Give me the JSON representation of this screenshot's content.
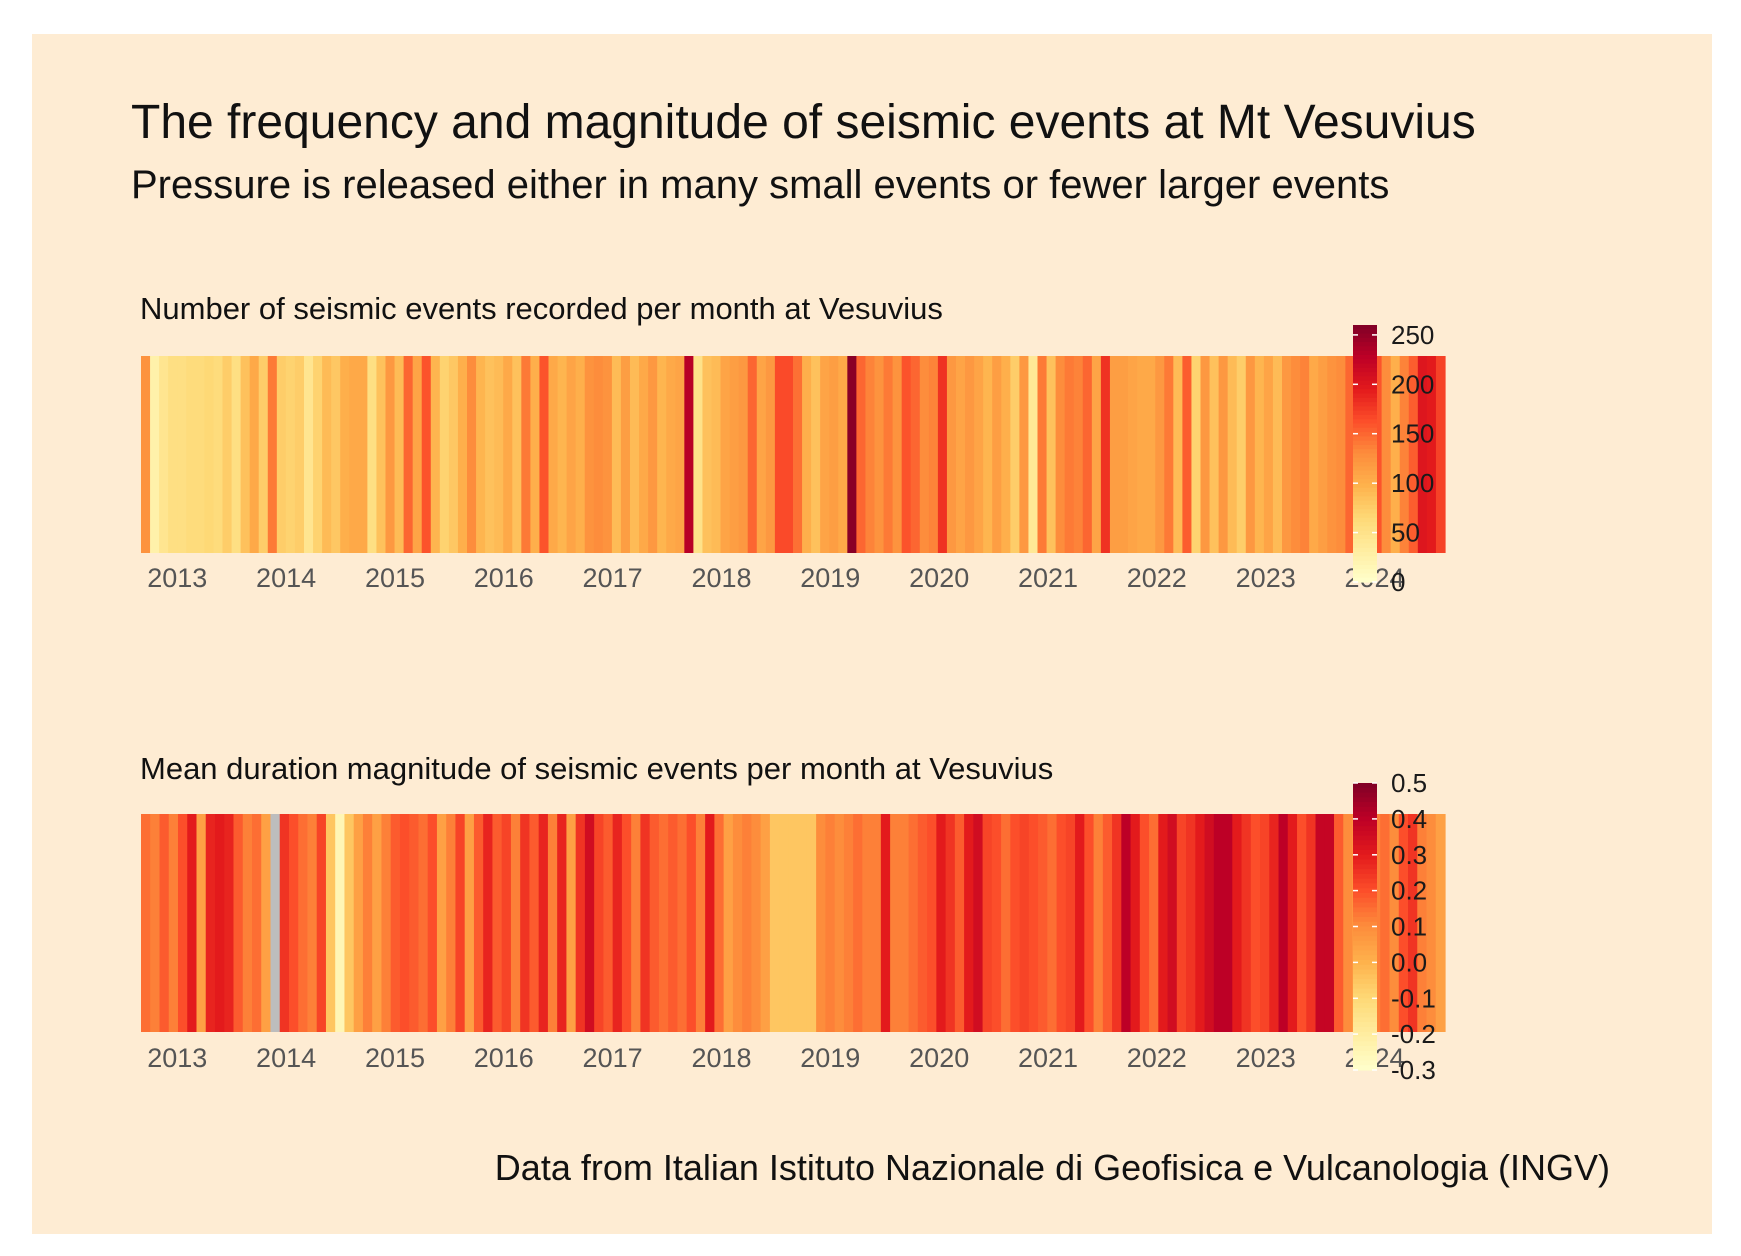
{
  "title": "The frequency and magnitude of seismic events at Mt Vesuvius",
  "subtitle": "Pressure is released either in many small events or fewer larger events",
  "caption": "Data from Italian Istituto Nazionale di Geofisica e Vulcanologia (INGV)",
  "colors": {
    "background": "#feecd3",
    "missing": "#bdbdbd",
    "scale": [
      "#ffffcc",
      "#ffeda0",
      "#fed976",
      "#feb24c",
      "#fd8d3c",
      "#fc4e2a",
      "#e31a1c",
      "#bd0026",
      "#800026"
    ]
  },
  "chart_data": [
    {
      "type": "heatmap",
      "title": "Number of seismic events recorded per month at Vesuvius",
      "x_start": "2013-01",
      "x_ticks": [
        "2013",
        "2014",
        "2015",
        "2016",
        "2017",
        "2018",
        "2019",
        "2020",
        "2021",
        "2022",
        "2023",
        "2024"
      ],
      "legend": {
        "min": 0,
        "max": 260,
        "ticks": [
          "0",
          "50",
          "100",
          "150",
          "200",
          "250"
        ],
        "tick_values": [
          0,
          50,
          100,
          150,
          200,
          250
        ]
      },
      "monthly_values": [
        125,
        25,
        45,
        55,
        55,
        60,
        60,
        65,
        60,
        75,
        55,
        85,
        105,
        75,
        140,
        75,
        70,
        75,
        45,
        70,
        90,
        80,
        100,
        105,
        105,
        55,
        85,
        120,
        90,
        150,
        110,
        160,
        95,
        70,
        80,
        100,
        130,
        95,
        85,
        90,
        105,
        85,
        140,
        100,
        160,
        105,
        95,
        110,
        100,
        125,
        130,
        125,
        90,
        115,
        90,
        105,
        120,
        95,
        105,
        110,
        230,
        50,
        85,
        90,
        110,
        115,
        120,
        150,
        110,
        120,
        165,
        165,
        145,
        100,
        85,
        110,
        115,
        105,
        255,
        150,
        135,
        125,
        140,
        125,
        160,
        150,
        130,
        135,
        180,
        120,
        110,
        120,
        110,
        95,
        115,
        100,
        75,
        120,
        40,
        140,
        85,
        130,
        140,
        135,
        150,
        110,
        180,
        115,
        115,
        110,
        105,
        105,
        120,
        140,
        90,
        155,
        70,
        120,
        85,
        120,
        90,
        75,
        120,
        95,
        110,
        90,
        120,
        130,
        135,
        105,
        115,
        125,
        130,
        150,
        125,
        115,
        160,
        130,
        100,
        135,
        155,
        200,
        195,
        170
      ]
    },
    {
      "type": "heatmap",
      "title": "Mean duration magnitude of seismic events per month at Vesuvius",
      "x_start": "2013-01",
      "x_ticks": [
        "2013",
        "2014",
        "2015",
        "2016",
        "2017",
        "2018",
        "2019",
        "2020",
        "2021",
        "2022",
        "2023",
        "2024"
      ],
      "legend": {
        "min": -0.3,
        "max": 0.5,
        "ticks": [
          "-0.3",
          "-0.2",
          "-0.1",
          "0.0",
          "0.1",
          "0.2",
          "0.3",
          "0.4",
          "0.5"
        ],
        "tick_values": [
          -0.3,
          -0.2,
          -0.1,
          0.0,
          0.1,
          0.2,
          0.3,
          0.4,
          0.5
        ]
      },
      "missing_months": [
        "2014-03"
      ],
      "monthly_values": [
        0.15,
        0.12,
        0.18,
        0.12,
        0.2,
        0.3,
        0.05,
        0.28,
        0.3,
        0.28,
        0.18,
        0.12,
        0.15,
        0.05,
        null,
        0.25,
        0.2,
        0.15,
        0.12,
        0.22,
        -0.05,
        -0.25,
        -0.05,
        0.05,
        0.12,
        0.05,
        0.12,
        0.18,
        0.2,
        0.18,
        0.15,
        0.2,
        0.05,
        0.12,
        0.22,
        0.05,
        0.18,
        0.28,
        0.18,
        0.22,
        0.12,
        0.25,
        0.18,
        0.28,
        0.12,
        0.28,
        0.05,
        0.25,
        0.35,
        0.22,
        0.18,
        0.28,
        0.2,
        0.12,
        0.25,
        0.18,
        0.15,
        0.18,
        0.15,
        0.2,
        0.12,
        0.3,
        0.15,
        0.05,
        0.1,
        0.12,
        0.1,
        0.05,
        -0.05,
        -0.05,
        -0.05,
        -0.05,
        -0.05,
        0.1,
        0.12,
        0.1,
        0.12,
        0.15,
        0.12,
        0.12,
        0.3,
        0.12,
        0.12,
        0.15,
        0.18,
        0.2,
        0.3,
        0.25,
        0.18,
        0.3,
        0.35,
        0.22,
        0.2,
        0.15,
        0.2,
        0.22,
        0.2,
        0.18,
        0.15,
        0.2,
        0.22,
        0.3,
        0.2,
        0.12,
        0.18,
        0.25,
        0.4,
        0.3,
        0.2,
        0.15,
        0.3,
        0.35,
        0.22,
        0.25,
        0.3,
        0.35,
        0.4,
        0.4,
        0.3,
        0.25,
        0.2,
        0.22,
        0.28,
        0.4,
        0.3,
        0.2,
        0.25,
        0.38,
        0.38,
        0.18,
        0.1,
        0.05,
        0.15,
        0.12,
        0.15,
        0.1,
        0.2,
        0.25,
        0.12,
        0.1,
        0.05
      ]
    }
  ]
}
